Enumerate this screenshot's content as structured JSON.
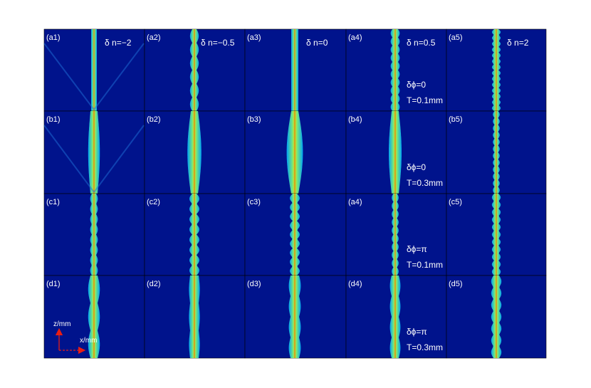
{
  "colors": {
    "background": "#00138c",
    "frame": "#000000",
    "text": "#ffffff",
    "arrow": "#e81e14"
  },
  "rows": [
    {
      "panels": [
        "(a1)",
        "(a2)",
        "(a3)",
        "(a4)",
        "(a5)"
      ]
    },
    {
      "panels": [
        "(b1)",
        "(b2)",
        "(b3)",
        "(b4)",
        "(b5)"
      ]
    },
    {
      "panels": [
        "(c1)",
        "(c2)",
        "(c3)",
        "(a4)",
        "(c5)"
      ]
    },
    {
      "panels": [
        "(d1)",
        "(d2)",
        "(d3)",
        "(d4)",
        "(d5)"
      ]
    }
  ],
  "delta_n_labels": [
    "δ n=−2",
    "δ n=−0.5",
    "δ n=0",
    "δ n=0.5",
    "δ n=2"
  ],
  "row_annotations": [
    {
      "phi": "δϕ=0",
      "T": "T=0.1mm"
    },
    {
      "phi": "δϕ=0",
      "T": "T=0.3mm"
    },
    {
      "phi": "δϕ=π",
      "T": "T=0.1mm"
    },
    {
      "phi": "δϕ=π",
      "T": "T=0.3mm"
    }
  ],
  "axes": {
    "z_label": "z/mm",
    "x_label": "x/mm"
  }
}
